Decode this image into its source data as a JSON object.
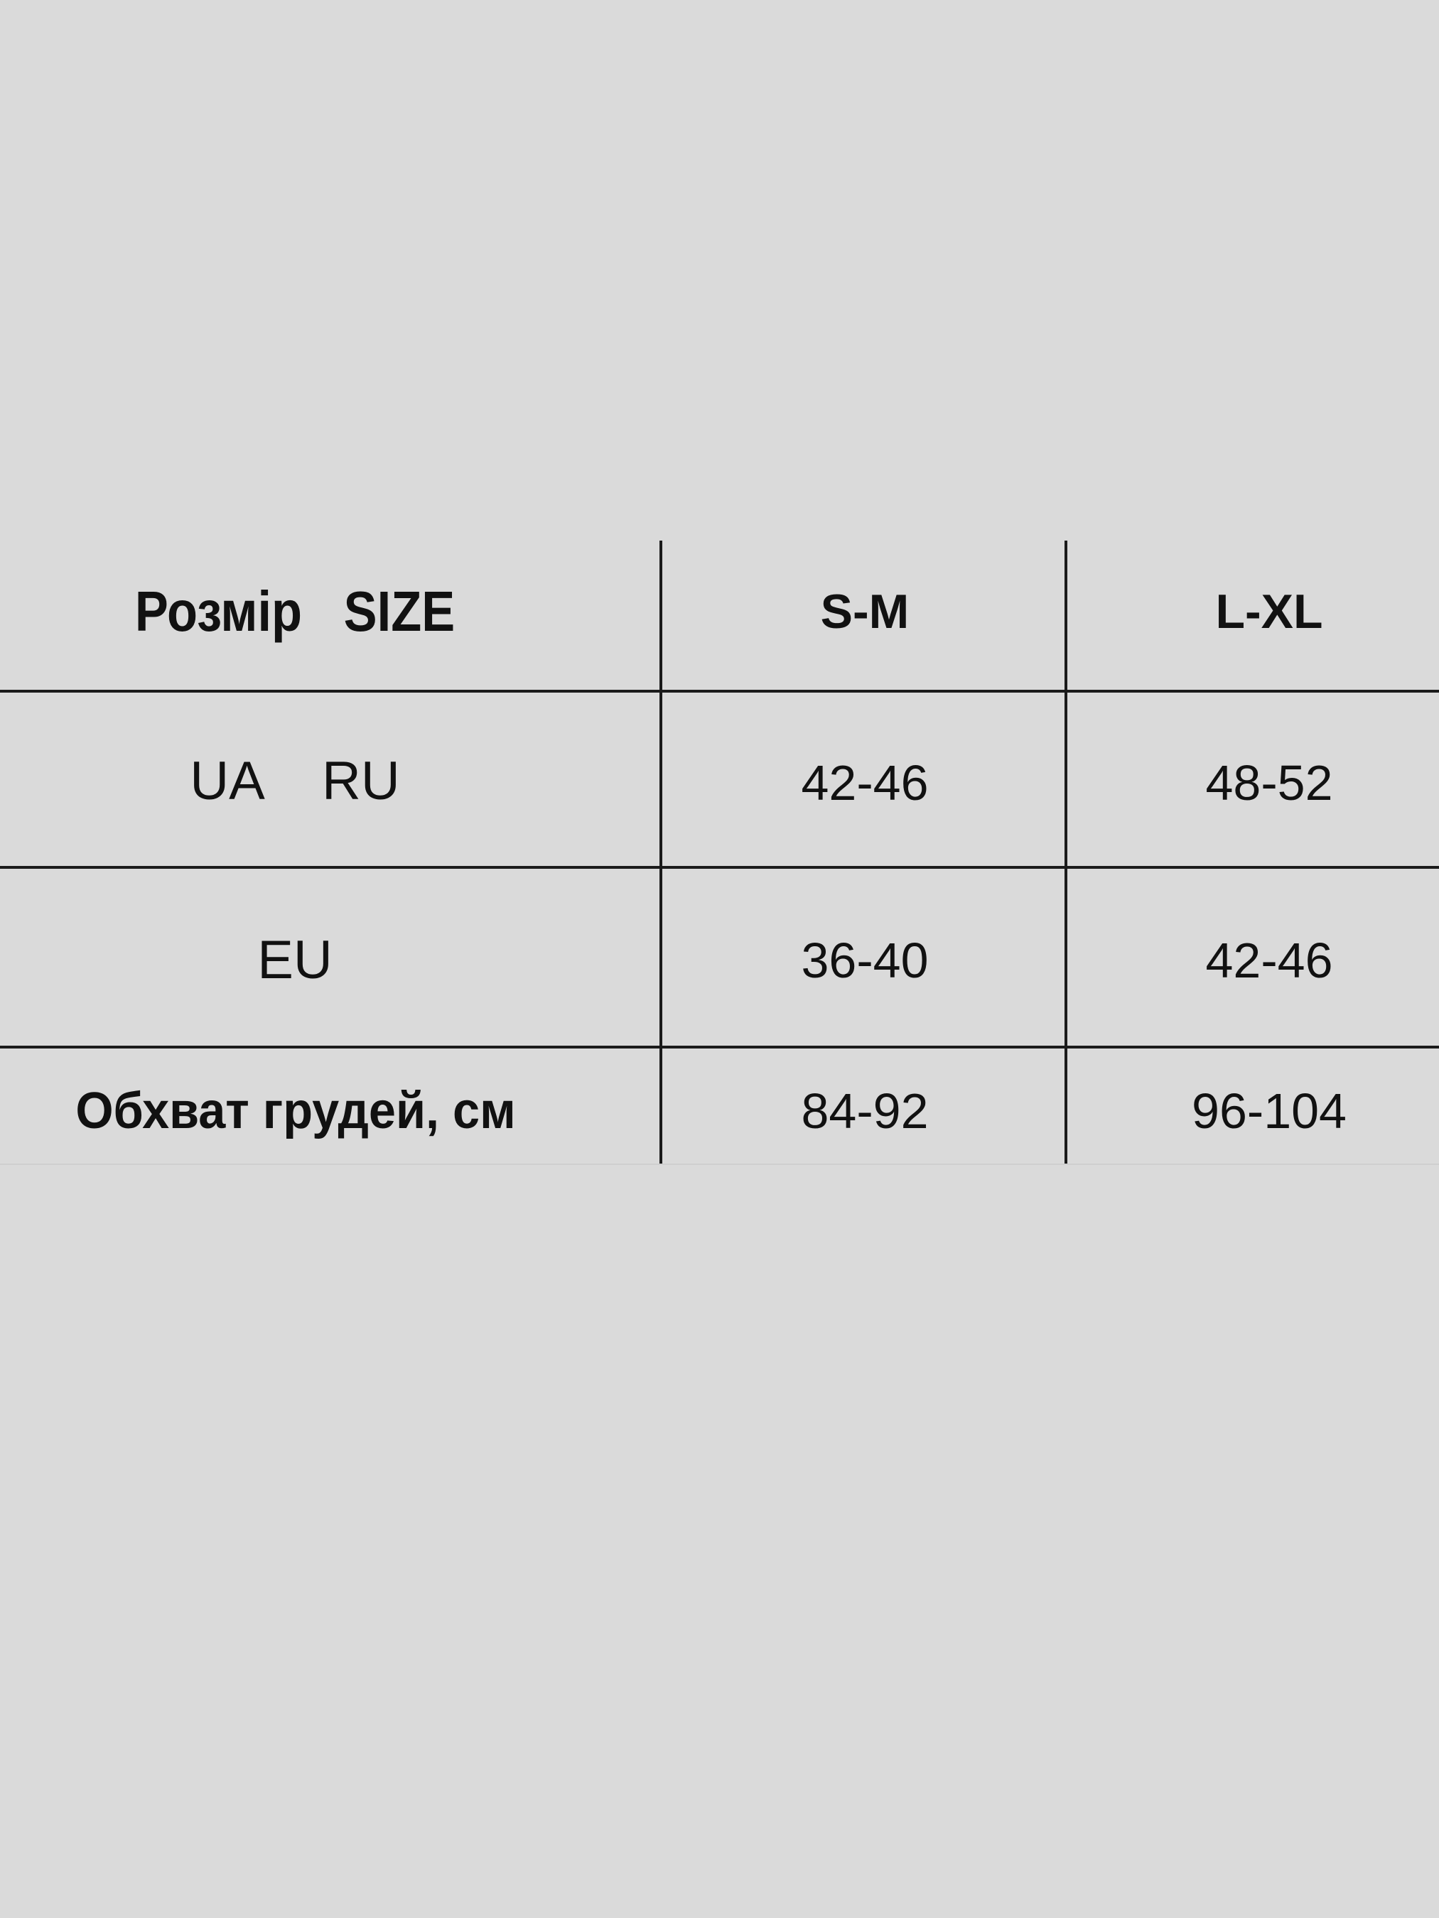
{
  "table": {
    "header": [
      "Розмір   SIZE",
      "S-M",
      "L-XL"
    ],
    "rows": [
      [
        "UA    RU",
        "42-46",
        "48-52"
      ],
      [
        "EU",
        "36-40",
        "42-46"
      ],
      [
        "Обхват грудей, см",
        "84-92",
        "96-104"
      ]
    ]
  }
}
